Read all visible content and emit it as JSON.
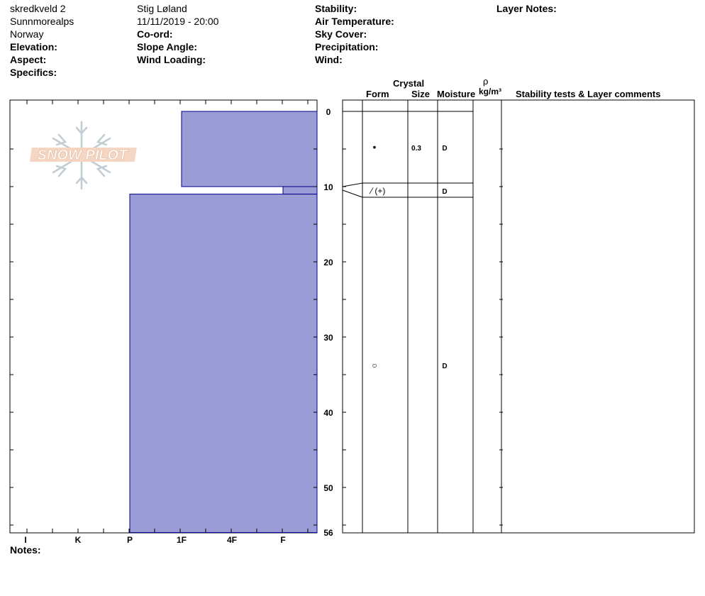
{
  "header": {
    "col1": {
      "site": "skredkveld 2",
      "range": "Sunnmorealps",
      "country": "Norway",
      "elevation": "Elevation:",
      "aspect": "Aspect:",
      "specifics": "Specifics:"
    },
    "col2": {
      "observer": "Stig Løland",
      "datetime": "11/11/2019 - 20:00",
      "coord": "Co-ord:",
      "slope_angle": "Slope Angle:",
      "wind_loading": "Wind Loading:"
    },
    "col3": {
      "stability": "Stability:",
      "air_temp": "Air Temperature:",
      "sky_cover": "Sky Cover:",
      "precipitation": "Precipitation:",
      "wind": "Wind:"
    },
    "col4": {
      "layer_notes": "Layer Notes:"
    }
  },
  "logo": {
    "text": "SNOW PILOT"
  },
  "columns": {
    "crystal": "Crystal",
    "form": "Form",
    "size": "Size",
    "moisture": "Moisture",
    "rho": "ρ",
    "density_unit": "kg/m³",
    "stability": "Stability tests & Layer comments"
  },
  "notes_label": "Notes:",
  "chart_data": {
    "type": "snow-profile",
    "hardness_scale": [
      "I",
      "K",
      "P",
      "1F",
      "4F",
      "F"
    ],
    "depth_ticks": [
      0,
      10,
      20,
      30,
      40,
      50,
      56
    ],
    "depth_range": [
      0,
      56
    ],
    "layers": [
      {
        "top": 0,
        "bottom": 10,
        "hardness": "1F",
        "form": "•",
        "size": "0.3",
        "moisture": "D"
      },
      {
        "top": 10,
        "bottom": 11,
        "hardness": "F",
        "form": "⁄ (+)",
        "size": "",
        "moisture": "D"
      },
      {
        "top": 11,
        "bottom": 56,
        "hardness": "P",
        "form": "○",
        "size": "",
        "moisture": "D"
      }
    ],
    "fill_color": "#9b9bd6",
    "stroke_color": "#00008b"
  }
}
